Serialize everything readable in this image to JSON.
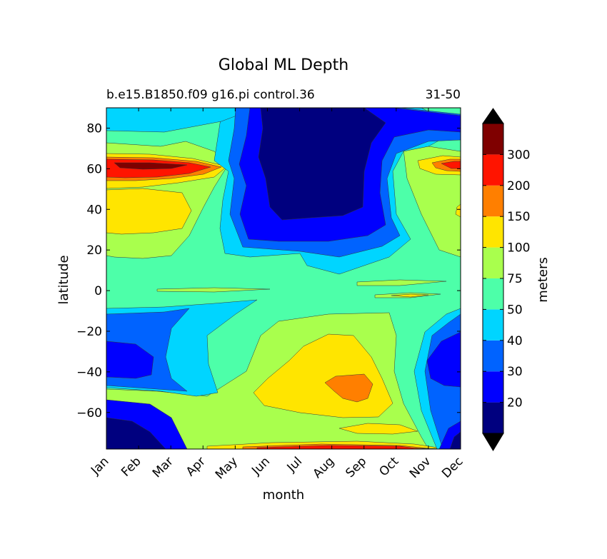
{
  "chart_data": {
    "type": "heatmap",
    "title": "Global ML Depth",
    "subtitle_left": "b.e15.B1850.f09 g16.pi control.36",
    "subtitle_right": "31-50",
    "xlabel": "month",
    "ylabel": "latitude",
    "x_ticks": [
      "Jan",
      "Feb",
      "Mar",
      "Apr",
      "May",
      "Jun",
      "Jul",
      "Aug",
      "Sep",
      "Oct",
      "Nov",
      "Dec"
    ],
    "y_ticks": [
      "80",
      "60",
      "40",
      "20",
      "0",
      "−20",
      "−40",
      "−60"
    ],
    "ylim": [
      -78,
      90
    ],
    "xlim": [
      1,
      12
    ],
    "colorbar": {
      "label": "meters",
      "levels": [
        0,
        20,
        30,
        40,
        50,
        75,
        100,
        150,
        200,
        300,
        400
      ],
      "tick_labels": [
        "20",
        "30",
        "40",
        "50",
        "75",
        "100",
        "150",
        "200",
        "300"
      ],
      "colors": [
        "#00007f",
        "#0000ff",
        "#0063ff",
        "#00d5ff",
        "#4dffa9",
        "#a9ff4d",
        "#ffe500",
        "#ff7f00",
        "#ff1400",
        "#7f0000"
      ],
      "extend": "both",
      "under_color": "#000000",
      "over_color": "#000000"
    }
  }
}
